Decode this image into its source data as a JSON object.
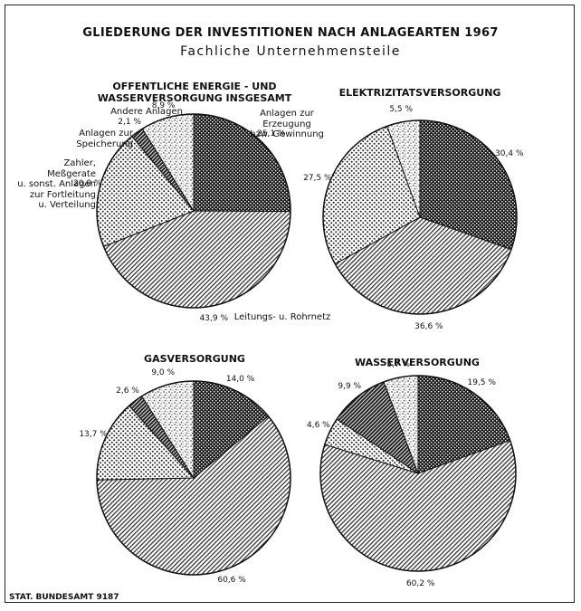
{
  "title": "GLIEDERUNG DER INVESTITIONEN NACH ANLAGEARTEN 1967",
  "subtitle": "Fachliche Unternehmensteile",
  "source": "STAT. BUNDESAMT 9187",
  "chart_data": [
    {
      "type": "pie",
      "title": "OFFENTLICHE ENERGIE - UND\nWASSERVERSORGUNG INSGESAMT",
      "categories": [
        "Anlagen zur Erzeugung\nbzw. Gewinnung",
        "Leitungs- u. Rohrnetz",
        "Zahler, Meßgerate\nu. sonst. Anlagen\nzur Fortleitung\nu. Verteilung",
        "Anlagen zur Speicherung",
        "Andere Anlagen"
      ],
      "values": [
        25.1,
        43.9,
        20.0,
        2.1,
        8.9
      ],
      "value_labels": [
        "25,1 %",
        "43,9 %",
        "20,0 %",
        "2,1 %",
        "8,9 %"
      ]
    },
    {
      "type": "pie",
      "title": "ELEKTRIZITATSVERSORGUNG",
      "values": [
        30.4,
        36.6,
        27.5,
        null,
        5.5
      ],
      "value_labels": [
        "30,4 %",
        "36,6 %",
        "27,5 %",
        null,
        "5,5 %"
      ]
    },
    {
      "type": "pie",
      "title": "GASVERSORGUNG",
      "values": [
        14.0,
        60.6,
        13.7,
        2.6,
        9.0
      ],
      "value_labels": [
        "14,0 %",
        "60,6 %",
        "13,7 %",
        "2,6 %",
        "9,0 %"
      ]
    },
    {
      "type": "pie",
      "title": "WASSERVERSORGUNG",
      "values": [
        19.5,
        60.2,
        4.6,
        9.9,
        5.7
      ],
      "value_labels": [
        "19,5 %",
        "60,2 %",
        "4,6 %",
        "9,9 %",
        "5,7 %"
      ]
    }
  ]
}
